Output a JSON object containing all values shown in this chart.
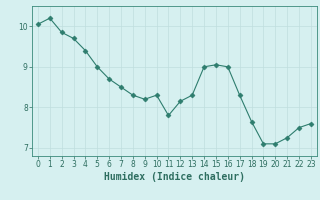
{
  "x": [
    0,
    1,
    2,
    3,
    4,
    5,
    6,
    7,
    8,
    9,
    10,
    11,
    12,
    13,
    14,
    15,
    16,
    17,
    18,
    19,
    20,
    21,
    22,
    23
  ],
  "y": [
    10.05,
    10.2,
    9.85,
    9.7,
    9.4,
    9.0,
    8.7,
    8.5,
    8.3,
    8.2,
    8.3,
    7.8,
    8.15,
    8.3,
    9.0,
    9.05,
    9.0,
    8.3,
    7.65,
    7.1,
    7.1,
    7.25,
    7.5,
    7.6
  ],
  "line_color": "#2e7d6e",
  "marker": "D",
  "marker_size": 2.5,
  "bg_color": "#d6f0f0",
  "grid_color": "#c0dede",
  "xlabel": "Humidex (Indice chaleur)",
  "ylabel": "",
  "ylim": [
    6.8,
    10.5
  ],
  "xlim": [
    -0.5,
    23.5
  ],
  "yticks": [
    7,
    8,
    9,
    10
  ],
  "xticks": [
    0,
    1,
    2,
    3,
    4,
    5,
    6,
    7,
    8,
    9,
    10,
    11,
    12,
    13,
    14,
    15,
    16,
    17,
    18,
    19,
    20,
    21,
    22,
    23
  ],
  "tick_fontsize": 5.5,
  "xlabel_fontsize": 7,
  "spine_color": "#3a8a7a",
  "axis_color": "#2e6e60"
}
